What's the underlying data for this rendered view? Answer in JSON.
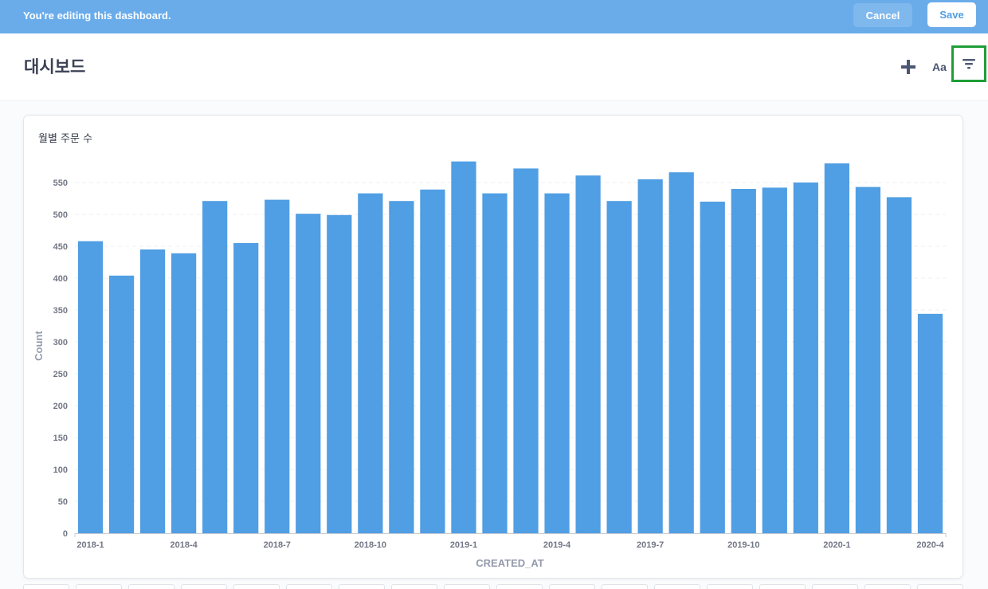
{
  "edit_bar": {
    "message": "You're editing this dashboard.",
    "cancel_label": "Cancel",
    "save_label": "Save"
  },
  "header": {
    "title": "대시보드",
    "text_button_label": "Aa"
  },
  "card": {
    "title": "월별 주문 수"
  },
  "colors": {
    "edit_bar": "#6aacea",
    "bar": "#509ee3",
    "filter_highlight": "#1e9e37"
  },
  "chart_data": {
    "type": "bar",
    "categories": [
      "2018-1",
      "2018-2",
      "2018-3",
      "2018-4",
      "2018-5",
      "2018-6",
      "2018-7",
      "2018-8",
      "2018-9",
      "2018-10",
      "2018-11",
      "2018-12",
      "2019-1",
      "2019-2",
      "2019-3",
      "2019-4",
      "2019-5",
      "2019-6",
      "2019-7",
      "2019-8",
      "2019-9",
      "2019-10",
      "2019-11",
      "2019-12",
      "2020-1",
      "2020-2",
      "2020-3",
      "2020-4"
    ],
    "values": [
      458,
      404,
      445,
      439,
      521,
      455,
      523,
      501,
      499,
      533,
      521,
      539,
      583,
      533,
      572,
      533,
      561,
      521,
      555,
      566,
      520,
      540,
      542,
      550,
      580,
      543,
      527,
      344
    ],
    "tick_labels": [
      "2018-1",
      "2018-4",
      "2018-7",
      "2018-10",
      "2019-1",
      "2019-4",
      "2019-7",
      "2019-10",
      "2020-1",
      "2020-4"
    ],
    "y_ticks": [
      0,
      50,
      100,
      150,
      200,
      250,
      300,
      350,
      400,
      450,
      500,
      550
    ],
    "xlabel": "CREATED_AT",
    "ylabel": "Count",
    "ylim": [
      0,
      600
    ],
    "grid": true
  }
}
